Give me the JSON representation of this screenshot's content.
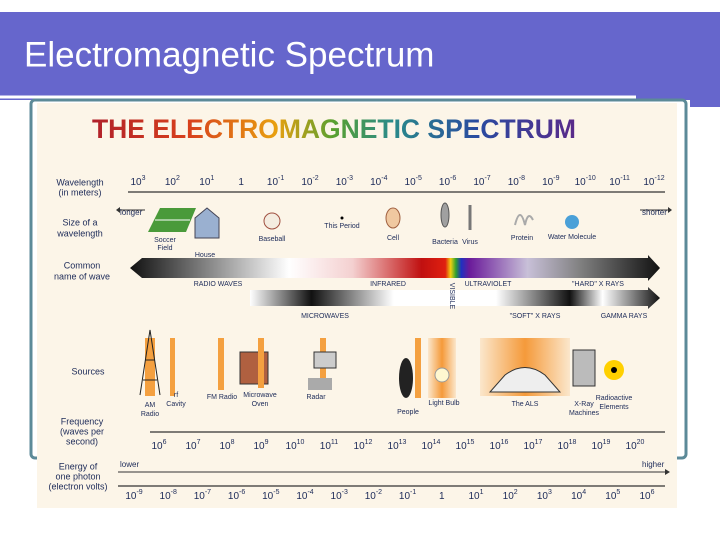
{
  "slide_title": "Electromagnetic Spectrum",
  "diagram": {
    "title": "THE ELECTROMAGNETIC SPECTRUM",
    "row_labels": {
      "wavelength": [
        "Wavelength",
        "(in meters)"
      ],
      "size": [
        "Size of a",
        "wavelength"
      ],
      "name": [
        "Common",
        "name of wave"
      ],
      "sources": [
        "Sources"
      ],
      "frequency": [
        "Frequency",
        "(waves per",
        "second)"
      ],
      "energy": [
        "Energy of",
        "one photon",
        "(electron volts)"
      ]
    },
    "wavelength_ticks": [
      {
        "base": "10",
        "exp": "3"
      },
      {
        "base": "10",
        "exp": "2"
      },
      {
        "base": "10",
        "exp": "1"
      },
      {
        "base": "1"
      },
      {
        "base": "10",
        "exp": "-1"
      },
      {
        "base": "10",
        "exp": "-2"
      },
      {
        "base": "10",
        "exp": "-3"
      },
      {
        "base": "10",
        "exp": "-4"
      },
      {
        "base": "10",
        "exp": "-5"
      },
      {
        "base": "10",
        "exp": "-6"
      },
      {
        "base": "10",
        "exp": "-7"
      },
      {
        "base": "10",
        "exp": "-8"
      },
      {
        "base": "10",
        "exp": "-9"
      },
      {
        "base": "10",
        "exp": "-10"
      },
      {
        "base": "10",
        "exp": "-11"
      },
      {
        "base": "10",
        "exp": "-12"
      }
    ],
    "size_ends": [
      "longer",
      "shorter"
    ],
    "size_objects": [
      [
        "Soccer",
        "Field"
      ],
      [
        "House"
      ],
      [
        "Baseball"
      ],
      [
        "This Period"
      ],
      [
        "Cell"
      ],
      [
        "Bacteria"
      ],
      [
        "Virus"
      ],
      [
        "Protein"
      ],
      [
        "Water Molecule"
      ]
    ],
    "wave_names": [
      "RADIO WAVES",
      "INFRARED",
      "VISIBLE",
      "ULTRAVIOLET",
      "\"HARD\" X RAYS",
      "MICROWAVES",
      "\"SOFT\" X RAYS",
      "GAMMA RAYS"
    ],
    "sources": [
      [
        "AM",
        "Radio"
      ],
      [
        "rf",
        "Cavity"
      ],
      [
        "FM Radio"
      ],
      [
        "Microwave",
        "Oven"
      ],
      [
        "Radar"
      ],
      [
        "People"
      ],
      [
        "Light Bulb"
      ],
      [
        "The ALS"
      ],
      [
        "X-Ray",
        "Machines"
      ],
      [
        "Radioactive",
        "Elements"
      ]
    ],
    "frequency_ticks": [
      {
        "base": "10",
        "exp": "6"
      },
      {
        "base": "10",
        "exp": "7"
      },
      {
        "base": "10",
        "exp": "8"
      },
      {
        "base": "10",
        "exp": "9"
      },
      {
        "base": "10",
        "exp": "10"
      },
      {
        "base": "10",
        "exp": "11"
      },
      {
        "base": "10",
        "exp": "12"
      },
      {
        "base": "10",
        "exp": "13"
      },
      {
        "base": "10",
        "exp": "14"
      },
      {
        "base": "10",
        "exp": "15"
      },
      {
        "base": "10",
        "exp": "16"
      },
      {
        "base": "10",
        "exp": "17"
      },
      {
        "base": "10",
        "exp": "18"
      },
      {
        "base": "10",
        "exp": "19"
      },
      {
        "base": "10",
        "exp": "20"
      }
    ],
    "energy_ends": [
      "lower",
      "higher"
    ],
    "energy_ticks": [
      {
        "base": "10",
        "exp": "-9"
      },
      {
        "base": "10",
        "exp": "-8"
      },
      {
        "base": "10",
        "exp": "-7"
      },
      {
        "base": "10",
        "exp": "-6"
      },
      {
        "base": "10",
        "exp": "-5"
      },
      {
        "base": "10",
        "exp": "-4"
      },
      {
        "base": "10",
        "exp": "-3"
      },
      {
        "base": "10",
        "exp": "-2"
      },
      {
        "base": "10",
        "exp": "-1"
      },
      {
        "base": "1"
      },
      {
        "base": "10",
        "exp": "1"
      },
      {
        "base": "10",
        "exp": "2"
      },
      {
        "base": "10",
        "exp": "3"
      },
      {
        "base": "10",
        "exp": "4"
      },
      {
        "base": "10",
        "exp": "5"
      },
      {
        "base": "10",
        "exp": "6"
      }
    ]
  }
}
